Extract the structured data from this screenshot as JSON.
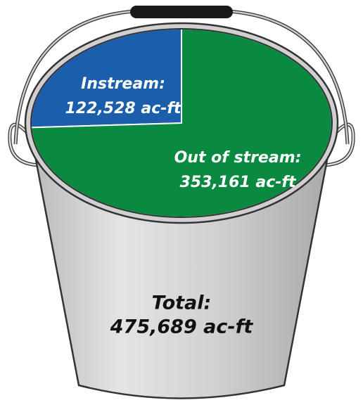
{
  "chart_data": {
    "type": "pie",
    "categories": [
      "Instream:",
      "Out of stream:"
    ],
    "values": [
      122528,
      353161
    ],
    "value_labels": [
      "122,528 ac-ft",
      "353,161 ac-ft"
    ],
    "colors": [
      "#1b5eab",
      "#0a8a40"
    ],
    "total_label": "Total:",
    "total_value_label": "475,689 ac-ft"
  }
}
